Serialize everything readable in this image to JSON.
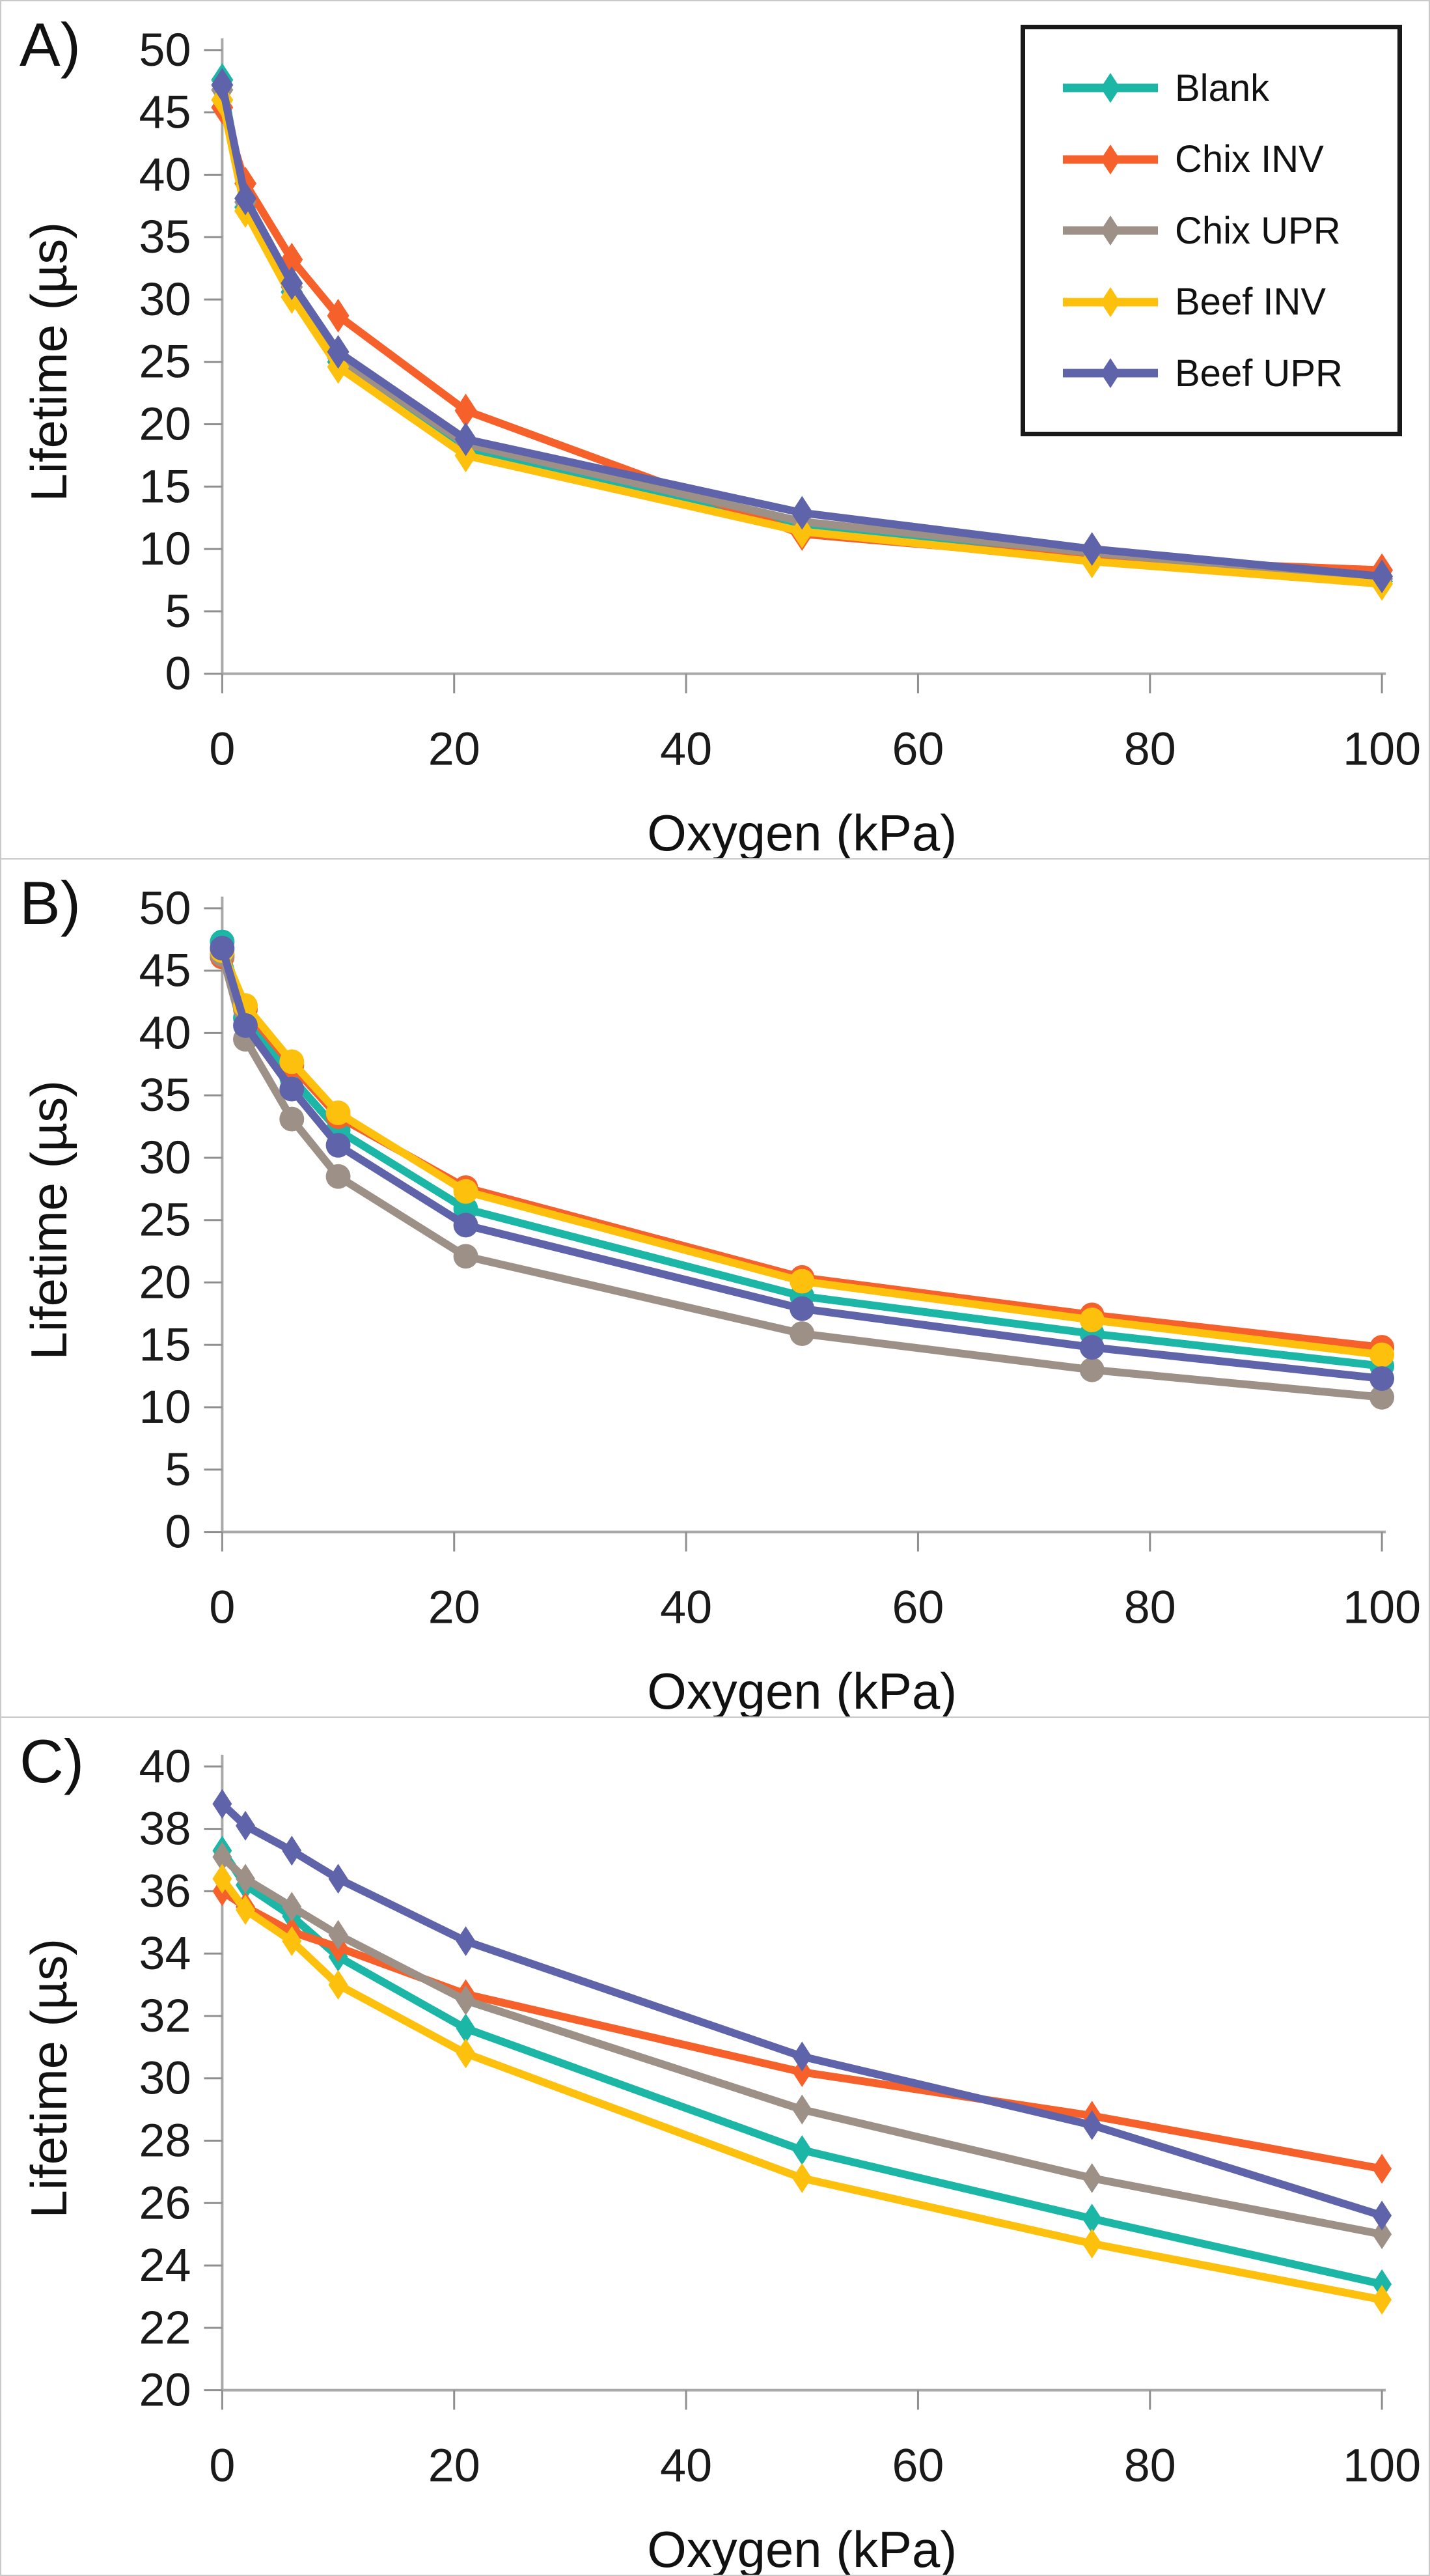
{
  "figure": {
    "description": "Three stacked line charts (A, B, C) of phosphorescence lifetime versus oxygen partial pressure for five samples",
    "panel_count": 3
  },
  "chart_data": [
    {
      "type": "line",
      "panel_label": "A)",
      "title": "",
      "xlabel": "Oxygen (kPa)",
      "ylabel": "Lifetime (µs)",
      "x": [
        0,
        2,
        6,
        10,
        21,
        50,
        75,
        100
      ],
      "xticks": [
        0,
        20,
        40,
        60,
        80,
        100
      ],
      "xlim": [
        0,
        100
      ],
      "ylim": [
        0,
        50
      ],
      "ystep": 5,
      "grid": false,
      "marker": "diamond",
      "legend": {
        "show": true,
        "position": "top-right",
        "border_color": "#191919"
      },
      "series": [
        {
          "name": "Blank",
          "color": "#1cb6a7",
          "values": [
            47.6,
            37.4,
            30.6,
            25.0,
            18.1,
            11.7,
            9.4,
            7.4
          ]
        },
        {
          "name": "Chix INV",
          "color": "#f6602a",
          "values": [
            45.4,
            39.3,
            33.2,
            28.7,
            21.1,
            11.2,
            9.2,
            8.3
          ]
        },
        {
          "name": "Chix UPR",
          "color": "#9d9086",
          "values": [
            46.8,
            37.8,
            31.0,
            25.3,
            18.4,
            12.2,
            9.7,
            7.6
          ]
        },
        {
          "name": "Beef INV",
          "color": "#fdc10d",
          "values": [
            46.0,
            37.1,
            30.2,
            24.6,
            17.5,
            11.4,
            9.0,
            7.2
          ]
        },
        {
          "name": "Beef UPR",
          "color": "#5f63aa",
          "values": [
            47.2,
            38.1,
            31.3,
            25.8,
            18.8,
            12.9,
            10.0,
            7.8
          ]
        }
      ]
    },
    {
      "type": "line",
      "panel_label": "B)",
      "title": "",
      "xlabel": "Oxygen (kPa)",
      "ylabel": "Lifetime (µs)",
      "x": [
        0,
        2,
        6,
        10,
        21,
        50,
        75,
        100
      ],
      "xticks": [
        0,
        20,
        40,
        60,
        80,
        100
      ],
      "xlim": [
        0,
        100
      ],
      "ylim": [
        0,
        50
      ],
      "ystep": 5,
      "grid": false,
      "marker": "circle",
      "legend": {
        "show": false
      },
      "series": [
        {
          "name": "Blank",
          "color": "#1cb6a7",
          "values": [
            47.3,
            41.2,
            36.4,
            32.2,
            25.9,
            18.9,
            15.9,
            13.3
          ]
        },
        {
          "name": "Chix INV",
          "color": "#f6602a",
          "values": [
            46.1,
            41.9,
            37.4,
            33.3,
            27.6,
            20.4,
            17.4,
            14.8
          ]
        },
        {
          "name": "Chix UPR",
          "color": "#9d9086",
          "values": [
            46.3,
            39.5,
            33.1,
            28.5,
            22.1,
            15.9,
            13.0,
            10.8
          ]
        },
        {
          "name": "Beef INV",
          "color": "#fdc10d",
          "values": [
            46.6,
            42.2,
            37.7,
            33.6,
            27.3,
            20.1,
            17.0,
            14.2
          ]
        },
        {
          "name": "Beef UPR",
          "color": "#5f63aa",
          "values": [
            46.8,
            40.6,
            35.5,
            31.0,
            24.6,
            17.9,
            14.8,
            12.3
          ]
        }
      ]
    },
    {
      "type": "line",
      "panel_label": "C)",
      "title": "",
      "xlabel": "Oxygen (kPa)",
      "ylabel": "Lifetime (µs)",
      "x": [
        0,
        2,
        6,
        10,
        21,
        50,
        75,
        100
      ],
      "xticks": [
        0,
        20,
        40,
        60,
        80,
        100
      ],
      "xlim": [
        0,
        100
      ],
      "ylim": [
        20,
        40
      ],
      "ystep": 2,
      "grid": false,
      "marker": "diamond",
      "legend": {
        "show": false
      },
      "series": [
        {
          "name": "Blank",
          "color": "#1cb6a7",
          "values": [
            37.3,
            36.2,
            35.2,
            33.9,
            31.6,
            27.7,
            25.5,
            23.4
          ]
        },
        {
          "name": "Chix INV",
          "color": "#f6602a",
          "values": [
            36.0,
            35.5,
            34.7,
            34.2,
            32.7,
            30.2,
            28.8,
            27.1
          ]
        },
        {
          "name": "Chix UPR",
          "color": "#9d9086",
          "values": [
            37.1,
            36.4,
            35.5,
            34.6,
            32.5,
            29.0,
            26.8,
            25.0
          ]
        },
        {
          "name": "Beef INV",
          "color": "#fdc10d",
          "values": [
            36.4,
            35.4,
            34.4,
            33.0,
            30.8,
            26.8,
            24.7,
            22.9
          ]
        },
        {
          "name": "Beef UPR",
          "color": "#5f63aa",
          "values": [
            38.8,
            38.1,
            37.3,
            36.4,
            34.4,
            30.7,
            28.5,
            25.6
          ]
        }
      ]
    }
  ]
}
